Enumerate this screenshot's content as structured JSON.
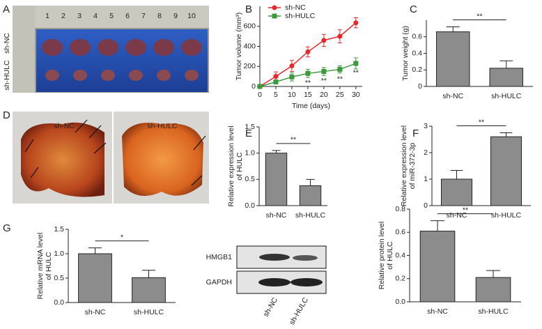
{
  "figure": {
    "panel_labels": [
      "A",
      "B",
      "C",
      "D",
      "E",
      "F",
      "G"
    ]
  },
  "photo_a": {
    "rows": [
      "sh-NC",
      "sh-HULC"
    ],
    "ruler": [
      "1",
      "2",
      "3",
      "4",
      "5",
      "6",
      "7",
      "8",
      "9",
      "10"
    ]
  },
  "photo_d": {
    "labels": [
      "sh-NC",
      "sh-HULC"
    ]
  },
  "blot": {
    "rows": [
      "HMGB1",
      "GAPDH"
    ],
    "lanes": [
      "sh-NC",
      "sh-HULC"
    ]
  },
  "chart_data": [
    {
      "type": "line",
      "xlabel": "Time (days)",
      "ylabel": [
        "Tumor volume (mm³)"
      ],
      "x": [
        0,
        5,
        10,
        15,
        20,
        25,
        30
      ],
      "xlim": [
        0,
        32
      ],
      "xticks": [
        0,
        5,
        10,
        15,
        20,
        25,
        30
      ],
      "ylim": [
        0,
        800
      ],
      "yticks": [
        0,
        200,
        400,
        600
      ],
      "legend": "top-left",
      "series": [
        {
          "name": "sh-NC",
          "color": "#e8262b",
          "marker": "circle",
          "values": [
            0,
            100,
            205,
            345,
            460,
            500,
            635
          ],
          "errors": [
            0,
            45,
            55,
            50,
            60,
            65,
            50
          ]
        },
        {
          "name": "sh-HULC",
          "color": "#3a9a3a",
          "marker": "square",
          "values": [
            0,
            45,
            95,
            130,
            150,
            170,
            230
          ],
          "errors": [
            0,
            20,
            40,
            40,
            40,
            35,
            55
          ],
          "point_labels": [
            null,
            null,
            null,
            "**",
            "**",
            "**",
            "**"
          ]
        }
      ]
    },
    {
      "type": "bar",
      "ylabel": [
        "Tumor weight (g)"
      ],
      "categories": [
        "sh-NC",
        "sh-HULC"
      ],
      "values": [
        0.66,
        0.22
      ],
      "errors": [
        0.06,
        0.09
      ],
      "color": "#8c8c8c",
      "ylim": [
        0,
        0.8
      ],
      "yticks": [
        0,
        0.2,
        0.4,
        0.6
      ],
      "significance": "**"
    },
    {
      "type": "bar",
      "ylabel": [
        "Relative expression level",
        "of HULC"
      ],
      "categories": [
        "sh-NC",
        "sh-HULC"
      ],
      "values": [
        1.0,
        0.38
      ],
      "errors": [
        0.05,
        0.12
      ],
      "color": "#8c8c8c",
      "ylim": [
        0,
        1.5
      ],
      "yticks": [
        {
          "value": 0,
          "label": "0.0"
        },
        0.5,
        {
          "value": 1,
          "label": "1.0"
        },
        1.5
      ],
      "significance": "**"
    },
    {
      "type": "bar",
      "ylabel": [
        "Relative expression level",
        "of miR-372-3p"
      ],
      "categories": [
        "sh-NC",
        "sh-HULC"
      ],
      "values": [
        1.0,
        2.6
      ],
      "errors": [
        0.33,
        0.15
      ],
      "color": "#8c8c8c",
      "ylim": [
        0,
        3
      ],
      "yticks": [
        0,
        1,
        2,
        3
      ],
      "significance": "**"
    },
    {
      "type": "bar",
      "ylabel": [
        "Relative mRNA level",
        "of HULC"
      ],
      "categories": [
        "sh-NC",
        "sh-HULC"
      ],
      "values": [
        1.0,
        0.51
      ],
      "errors": [
        0.12,
        0.15
      ],
      "color": "#8c8c8c",
      "ylim": [
        0,
        1.5
      ],
      "yticks": [
        {
          "value": 0,
          "label": "0.0"
        },
        0.5,
        {
          "value": 1,
          "label": "1.0"
        },
        1.5
      ],
      "significance": "*"
    },
    {
      "type": "bar",
      "ylabel": [
        "Relative protein level",
        "of HULC"
      ],
      "categories": [
        "sh-NC",
        "sh-HULC"
      ],
      "values": [
        0.61,
        0.21
      ],
      "errors": [
        0.09,
        0.06
      ],
      "color": "#8c8c8c",
      "ylim": [
        0,
        0.8
      ],
      "yticks": [
        {
          "value": 0,
          "label": "0.0"
        },
        0.2,
        0.4,
        0.6,
        0.8
      ],
      "significance": "**"
    }
  ]
}
